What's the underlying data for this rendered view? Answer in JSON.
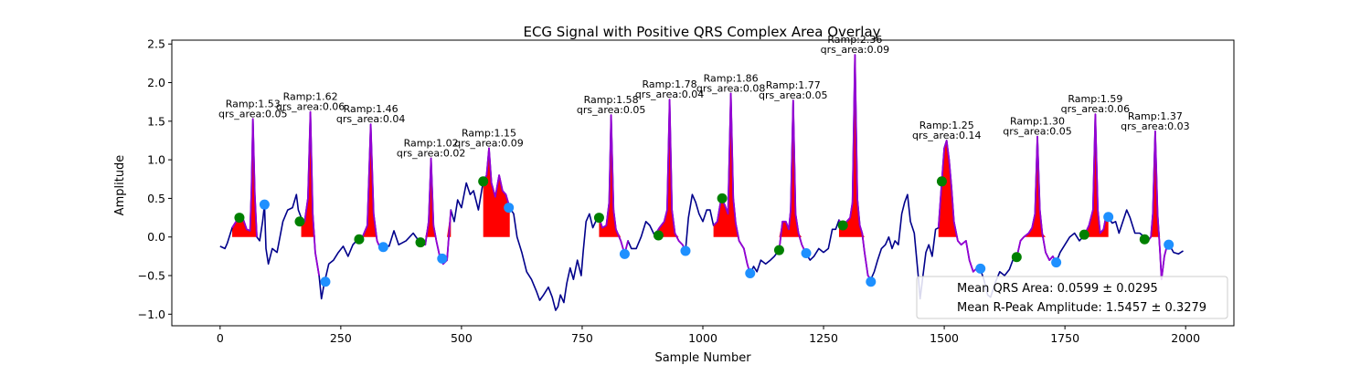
{
  "chart_data": {
    "type": "line",
    "title": "ECG Signal with Positive QRS Complex Area Overlay",
    "xlabel": "Sample Number",
    "ylabel": "Amplitude",
    "xlim": [
      -100,
      2100
    ],
    "ylim": [
      -1.15,
      2.55
    ],
    "xticks": [
      0,
      250,
      500,
      750,
      1000,
      1250,
      1500,
      1750,
      2000
    ],
    "yticks": [
      -1.0,
      -0.5,
      0.0,
      0.5,
      1.0,
      1.5,
      2.0,
      2.5
    ],
    "xtick_labels": [
      "0",
      "250",
      "500",
      "750",
      "1000",
      "1250",
      "1500",
      "1750",
      "2000"
    ],
    "ytick_labels": [
      "−1.0",
      "−0.5",
      "0.0",
      "0.5",
      "1.0",
      "1.5",
      "2.0",
      "2.5"
    ],
    "grid": false,
    "colors": {
      "signal": "#00008b",
      "qrs_segment": "#9400d3",
      "qrs_fill": "#ff0000",
      "onset_marker": "#008000",
      "offset_marker": "#1e90ff"
    },
    "baseline": [
      [
        0,
        -0.12
      ],
      [
        10,
        -0.15
      ],
      [
        15,
        -0.08
      ],
      [
        25,
        0.12
      ],
      [
        35,
        0.22
      ],
      [
        45,
        0.28
      ],
      [
        55,
        0.1
      ],
      [
        62,
        0.08
      ],
      [
        65,
        0.6
      ],
      [
        68,
        1.53
      ],
      [
        72,
        0.55
      ],
      [
        76,
        0.0
      ],
      [
        82,
        -0.05
      ],
      [
        88,
        0.2
      ],
      [
        92,
        0.42
      ],
      [
        95,
        -0.15
      ],
      [
        100,
        -0.35
      ],
      [
        108,
        -0.15
      ],
      [
        118,
        -0.2
      ],
      [
        130,
        0.2
      ],
      [
        140,
        0.35
      ],
      [
        150,
        0.38
      ],
      [
        158,
        0.55
      ],
      [
        162,
        0.35
      ],
      [
        168,
        0.25
      ],
      [
        175,
        0.2
      ],
      [
        182,
        0.5
      ],
      [
        187,
        1.62
      ],
      [
        192,
        0.3
      ],
      [
        197,
        -0.2
      ],
      [
        205,
        -0.5
      ],
      [
        210,
        -0.8
      ],
      [
        215,
        -0.62
      ],
      [
        225,
        -0.35
      ],
      [
        235,
        -0.3
      ],
      [
        245,
        -0.2
      ],
      [
        255,
        -0.12
      ],
      [
        265,
        -0.25
      ],
      [
        275,
        -0.1
      ],
      [
        285,
        -0.03
      ],
      [
        295,
        0.0
      ],
      [
        305,
        0.15
      ],
      [
        312,
        1.46
      ],
      [
        318,
        0.3
      ],
      [
        325,
        -0.05
      ],
      [
        332,
        -0.15
      ],
      [
        340,
        -0.1
      ],
      [
        350,
        -0.12
      ],
      [
        360,
        0.08
      ],
      [
        370,
        -0.1
      ],
      [
        385,
        -0.05
      ],
      [
        400,
        0.05
      ],
      [
        415,
        -0.08
      ],
      [
        425,
        -0.1
      ],
      [
        432,
        0.2
      ],
      [
        437,
        1.02
      ],
      [
        442,
        0.15
      ],
      [
        448,
        -0.05
      ],
      [
        455,
        -0.25
      ],
      [
        462,
        -0.35
      ],
      [
        470,
        -0.3
      ],
      [
        478,
        0.35
      ],
      [
        485,
        0.2
      ],
      [
        492,
        0.48
      ],
      [
        500,
        0.38
      ],
      [
        510,
        0.7
      ],
      [
        518,
        0.55
      ],
      [
        525,
        0.6
      ],
      [
        535,
        0.35
      ],
      [
        545,
        0.72
      ],
      [
        552,
        0.8
      ],
      [
        557,
        1.15
      ],
      [
        562,
        0.7
      ],
      [
        570,
        0.52
      ],
      [
        578,
        0.8
      ],
      [
        585,
        0.6
      ],
      [
        592,
        0.55
      ],
      [
        600,
        0.38
      ],
      [
        608,
        0.3
      ],
      [
        615,
        0.0
      ],
      [
        625,
        -0.2
      ],
      [
        635,
        -0.45
      ],
      [
        645,
        -0.55
      ],
      [
        655,
        -0.7
      ],
      [
        662,
        -0.82
      ],
      [
        670,
        -0.75
      ],
      [
        680,
        -0.65
      ],
      [
        688,
        -0.78
      ],
      [
        695,
        -0.95
      ],
      [
        700,
        -0.9
      ],
      [
        705,
        -0.75
      ],
      [
        712,
        -0.85
      ],
      [
        718,
        -0.6
      ],
      [
        725,
        -0.4
      ],
      [
        732,
        -0.55
      ],
      [
        740,
        -0.3
      ],
      [
        748,
        -0.5
      ],
      [
        752,
        -0.2
      ],
      [
        758,
        0.2
      ],
      [
        765,
        0.3
      ],
      [
        772,
        0.12
      ],
      [
        778,
        0.2
      ],
      [
        785,
        0.25
      ],
      [
        792,
        0.12
      ],
      [
        800,
        0.15
      ],
      [
        806,
        0.45
      ],
      [
        810,
        1.58
      ],
      [
        815,
        0.35
      ],
      [
        820,
        0.1
      ],
      [
        830,
        -0.05
      ],
      [
        838,
        -0.22
      ],
      [
        845,
        -0.05
      ],
      [
        852,
        -0.15
      ],
      [
        862,
        -0.15
      ],
      [
        872,
        0.0
      ],
      [
        882,
        0.2
      ],
      [
        890,
        0.15
      ],
      [
        900,
        0.02
      ],
      [
        910,
        0.12
      ],
      [
        920,
        0.2
      ],
      [
        926,
        0.35
      ],
      [
        931,
        1.78
      ],
      [
        936,
        0.35
      ],
      [
        942,
        0.05
      ],
      [
        950,
        -0.05
      ],
      [
        958,
        -0.1
      ],
      [
        964,
        -0.18
      ],
      [
        970,
        0.25
      ],
      [
        978,
        0.55
      ],
      [
        985,
        0.45
      ],
      [
        992,
        0.3
      ],
      [
        1000,
        0.2
      ],
      [
        1008,
        0.35
      ],
      [
        1015,
        0.35
      ],
      [
        1022,
        0.15
      ],
      [
        1030,
        0.2
      ],
      [
        1038,
        0.5
      ],
      [
        1045,
        0.42
      ],
      [
        1052,
        0.3
      ],
      [
        1058,
        1.86
      ],
      [
        1063,
        0.5
      ],
      [
        1068,
        0.18
      ],
      [
        1075,
        -0.05
      ],
      [
        1085,
        -0.15
      ],
      [
        1092,
        -0.35
      ],
      [
        1098,
        -0.48
      ],
      [
        1105,
        -0.38
      ],
      [
        1112,
        -0.45
      ],
      [
        1120,
        -0.3
      ],
      [
        1130,
        -0.35
      ],
      [
        1140,
        -0.3
      ],
      [
        1148,
        -0.25
      ],
      [
        1158,
        -0.17
      ],
      [
        1165,
        0.2
      ],
      [
        1172,
        0.2
      ],
      [
        1178,
        0.1
      ],
      [
        1182,
        0.35
      ],
      [
        1187,
        1.77
      ],
      [
        1192,
        0.3
      ],
      [
        1198,
        0.05
      ],
      [
        1205,
        -0.1
      ],
      [
        1214,
        -0.22
      ],
      [
        1222,
        -0.3
      ],
      [
        1230,
        -0.25
      ],
      [
        1240,
        -0.15
      ],
      [
        1250,
        -0.2
      ],
      [
        1260,
        -0.15
      ],
      [
        1268,
        0.1
      ],
      [
        1275,
        0.1
      ],
      [
        1282,
        0.22
      ],
      [
        1290,
        0.15
      ],
      [
        1298,
        0.2
      ],
      [
        1305,
        0.25
      ],
      [
        1310,
        0.45
      ],
      [
        1315,
        2.36
      ],
      [
        1320,
        0.5
      ],
      [
        1325,
        0.15
      ],
      [
        1330,
        0.05
      ],
      [
        1335,
        -0.2
      ],
      [
        1342,
        -0.5
      ],
      [
        1348,
        -0.55
      ],
      [
        1355,
        -0.45
      ],
      [
        1362,
        -0.3
      ],
      [
        1370,
        -0.15
      ],
      [
        1378,
        -0.1
      ],
      [
        1385,
        0.0
      ],
      [
        1392,
        -0.15
      ],
      [
        1398,
        -0.05
      ],
      [
        1405,
        -0.1
      ],
      [
        1412,
        0.3
      ],
      [
        1418,
        0.45
      ],
      [
        1424,
        0.55
      ],
      [
        1430,
        0.2
      ],
      [
        1438,
        0.05
      ],
      [
        1446,
        -0.5
      ],
      [
        1450,
        -0.8
      ],
      [
        1455,
        -0.55
      ],
      [
        1462,
        -0.2
      ],
      [
        1468,
        -0.1
      ],
      [
        1475,
        -0.25
      ],
      [
        1482,
        0.1
      ],
      [
        1488,
        0.12
      ],
      [
        1495,
        0.72
      ],
      [
        1500,
        1.15
      ],
      [
        1505,
        1.25
      ],
      [
        1510,
        1.0
      ],
      [
        1515,
        0.65
      ],
      [
        1520,
        0.2
      ],
      [
        1528,
        -0.05
      ],
      [
        1535,
        -0.1
      ],
      [
        1545,
        -0.05
      ],
      [
        1552,
        -0.3
      ],
      [
        1560,
        -0.45
      ],
      [
        1568,
        -0.4
      ],
      [
        1575,
        -0.42
      ],
      [
        1582,
        -0.55
      ],
      [
        1590,
        -0.75
      ],
      [
        1596,
        -0.78
      ],
      [
        1605,
        -0.6
      ],
      [
        1615,
        -0.45
      ],
      [
        1625,
        -0.5
      ],
      [
        1635,
        -0.42
      ],
      [
        1642,
        -0.3
      ],
      [
        1650,
        -0.27
      ],
      [
        1658,
        -0.05
      ],
      [
        1665,
        0.0
      ],
      [
        1675,
        0.05
      ],
      [
        1682,
        0.12
      ],
      [
        1688,
        0.3
      ],
      [
        1693,
        1.3
      ],
      [
        1698,
        0.35
      ],
      [
        1703,
        0.05
      ],
      [
        1710,
        -0.2
      ],
      [
        1718,
        -0.3
      ],
      [
        1725,
        -0.25
      ],
      [
        1732,
        -0.33
      ],
      [
        1740,
        -0.2
      ],
      [
        1750,
        -0.1
      ],
      [
        1760,
        0.0
      ],
      [
        1770,
        0.05
      ],
      [
        1780,
        -0.05
      ],
      [
        1790,
        0.02
      ],
      [
        1800,
        0.15
      ],
      [
        1808,
        0.35
      ],
      [
        1813,
        1.59
      ],
      [
        1818,
        0.35
      ],
      [
        1823,
        0.05
      ],
      [
        1830,
        0.1
      ],
      [
        1836,
        0.3
      ],
      [
        1840,
        0.25
      ],
      [
        1848,
        0.18
      ],
      [
        1855,
        0.2
      ],
      [
        1862,
        0.05
      ],
      [
        1870,
        0.2
      ],
      [
        1878,
        0.35
      ],
      [
        1885,
        0.25
      ],
      [
        1895,
        0.05
      ],
      [
        1905,
        0.05
      ],
      [
        1915,
        0.0
      ],
      [
        1922,
        -0.05
      ],
      [
        1928,
        0.0
      ],
      [
        1932,
        0.3
      ],
      [
        1937,
        1.37
      ],
      [
        1942,
        0.3
      ],
      [
        1947,
        -0.2
      ],
      [
        1950,
        -0.55
      ],
      [
        1956,
        -0.25
      ],
      [
        1962,
        -0.1
      ],
      [
        1968,
        -0.12
      ],
      [
        1975,
        -0.2
      ],
      [
        1985,
        -0.22
      ],
      [
        1995,
        -0.18
      ]
    ],
    "qrs_segments": [
      [
        25,
        76
      ],
      [
        168,
        205
      ],
      [
        295,
        340
      ],
      [
        415,
        478
      ],
      [
        545,
        600
      ],
      [
        785,
        845
      ],
      [
        900,
        964
      ],
      [
        1022,
        1098
      ],
      [
        1158,
        1214
      ],
      [
        1282,
        1348
      ],
      [
        1488,
        1575
      ],
      [
        1650,
        1732
      ],
      [
        1790,
        1840
      ],
      [
        1915,
        1962
      ]
    ],
    "peaks": [
      {
        "x": 68,
        "y": 1.53,
        "ramp": "Ramp:1.53",
        "qrs": "qrs_area:0.05"
      },
      {
        "x": 187,
        "y": 1.62,
        "ramp": "Ramp:1.62",
        "qrs": "qrs_area:0.06"
      },
      {
        "x": 312,
        "y": 1.46,
        "ramp": "Ramp:1.46",
        "qrs": "qrs_area:0.04"
      },
      {
        "x": 437,
        "y": 1.02,
        "ramp": "Ramp:1.02",
        "qrs": "qrs_area:0.02"
      },
      {
        "x": 557,
        "y": 1.15,
        "ramp": "Ramp:1.15",
        "qrs": "qrs_area:0.09"
      },
      {
        "x": 810,
        "y": 1.58,
        "ramp": "Ramp:1.58",
        "qrs": "qrs_area:0.05"
      },
      {
        "x": 931,
        "y": 1.78,
        "ramp": "Ramp:1.78",
        "qrs": "qrs_area:0.04"
      },
      {
        "x": 1058,
        "y": 1.86,
        "ramp": "Ramp:1.86",
        "qrs": "qrs_area:0.08"
      },
      {
        "x": 1187,
        "y": 1.77,
        "ramp": "Ramp:1.77",
        "qrs": "qrs_area:0.05"
      },
      {
        "x": 1315,
        "y": 2.36,
        "ramp": "Ramp:2.36",
        "qrs": "qrs_area:0.09"
      },
      {
        "x": 1505,
        "y": 1.25,
        "ramp": "Ramp:1.25",
        "qrs": "qrs_area:0.14"
      },
      {
        "x": 1693,
        "y": 1.3,
        "ramp": "Ramp:1.30",
        "qrs": "qrs_area:0.05"
      },
      {
        "x": 1813,
        "y": 1.59,
        "ramp": "Ramp:1.59",
        "qrs": "qrs_area:0.06"
      },
      {
        "x": 1937,
        "y": 1.37,
        "ramp": "Ramp:1.37",
        "qrs": "qrs_area:0.03"
      }
    ],
    "onset_points": [
      [
        40,
        0.25
      ],
      [
        165,
        0.2
      ],
      [
        288,
        -0.03
      ],
      [
        415,
        -0.07
      ],
      [
        545,
        0.72
      ],
      [
        785,
        0.25
      ],
      [
        908,
        0.02
      ],
      [
        1040,
        0.5
      ],
      [
        1158,
        -0.17
      ],
      [
        1290,
        0.15
      ],
      [
        1495,
        0.72
      ],
      [
        1650,
        -0.26
      ],
      [
        1790,
        0.03
      ],
      [
        1915,
        -0.03
      ]
    ],
    "offset_points": [
      [
        92,
        0.42
      ],
      [
        218,
        -0.58
      ],
      [
        338,
        -0.13
      ],
      [
        460,
        -0.28
      ],
      [
        598,
        0.38
      ],
      [
        838,
        -0.22
      ],
      [
        964,
        -0.18
      ],
      [
        1098,
        -0.47
      ],
      [
        1214,
        -0.21
      ],
      [
        1348,
        -0.58
      ],
      [
        1575,
        -0.41
      ],
      [
        1732,
        -0.33
      ],
      [
        1840,
        0.26
      ],
      [
        1965,
        -0.1
      ]
    ],
    "legend": {
      "placement": "lower-right",
      "entries": [
        "Mean QRS Area: 0.0599 ± 0.0295",
        "Mean R-Peak Amplitude: 1.5457 ± 0.3279"
      ]
    }
  }
}
